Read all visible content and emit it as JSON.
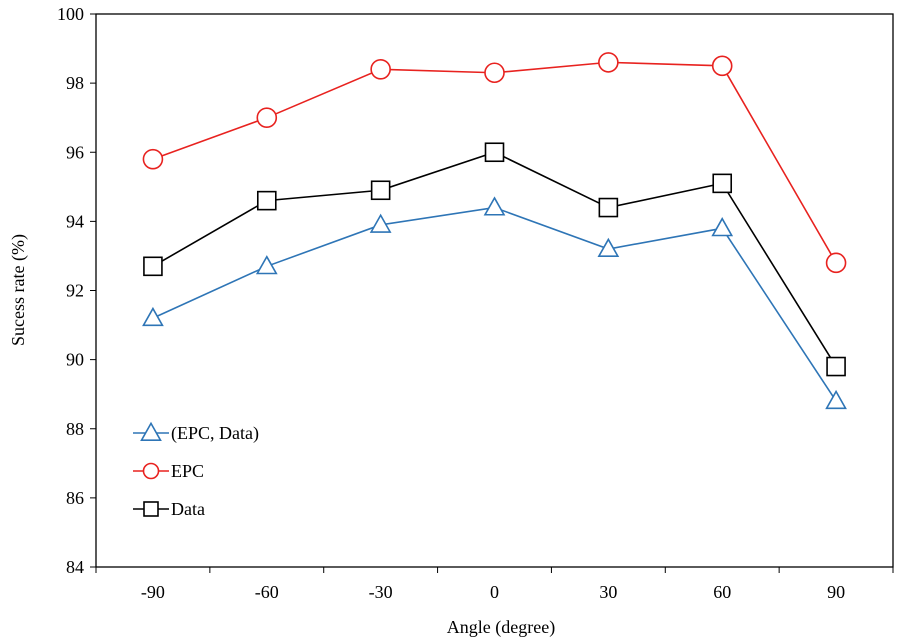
{
  "chart_data": {
    "type": "line",
    "title": "",
    "xlabel": "Angle (degree)",
    "ylabel": "Sucess rate (%)",
    "categories": [
      "-90",
      "-60",
      "-30",
      "0",
      "30",
      "60",
      "90"
    ],
    "ylim": [
      84,
      100
    ],
    "yticks": [
      "84",
      "86",
      "88",
      "90",
      "92",
      "94",
      "96",
      "98",
      "100"
    ],
    "grid": false,
    "legend_position": "bottom-left",
    "series": [
      {
        "name": "(EPC, Data)",
        "color": "#2E75B6",
        "marker": "triangle",
        "values": [
          91.2,
          92.7,
          93.9,
          94.4,
          93.2,
          93.8,
          88.8
        ]
      },
      {
        "name": "EPC",
        "color": "#E8221F",
        "marker": "circle",
        "values": [
          95.8,
          97.0,
          98.4,
          98.3,
          98.6,
          98.5,
          92.8
        ]
      },
      {
        "name": "Data",
        "color": "#000000",
        "marker": "square",
        "values": [
          92.7,
          94.6,
          94.9,
          96.0,
          94.4,
          95.1,
          89.8
        ]
      }
    ]
  }
}
